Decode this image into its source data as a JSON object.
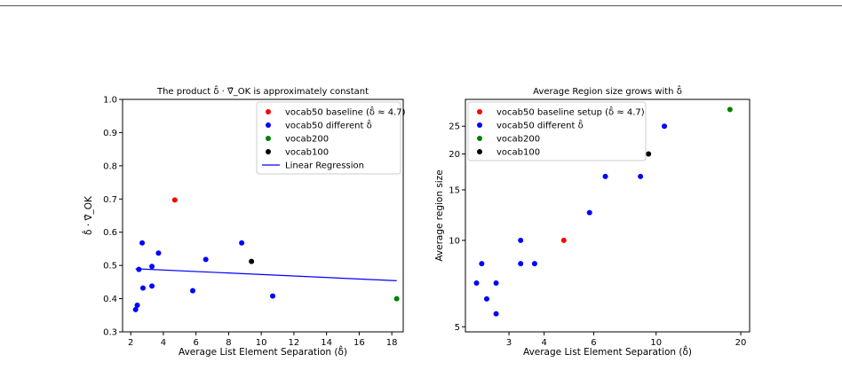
{
  "chart_data": [
    {
      "type": "scatter",
      "title": "The product δ̂ · ∇̂_OK is approximately constant",
      "xlabel": "Average List Element Separation (δ̂)",
      "ylabel": "δ̂ · ∇̂_OK",
      "xlim": [
        1.5,
        18.7
      ],
      "ylim": [
        0.3,
        1.0
      ],
      "x_ticks": [
        2,
        4,
        6,
        8,
        10,
        12,
        14,
        16,
        18
      ],
      "x_tick_labels": [
        "2",
        "4",
        "6",
        "8",
        "10",
        "12",
        "14",
        "16",
        "18"
      ],
      "y_ticks": [
        0.3,
        0.4,
        0.5,
        0.6,
        0.7,
        0.8,
        0.9,
        1.0
      ],
      "y_tick_labels": [
        "0.3",
        "0.4",
        "0.5",
        "0.6",
        "0.7",
        "0.8",
        "0.9",
        "1.0"
      ],
      "legend_position": "top-right",
      "series": [
        {
          "name": "vocab50 baseline  (δ̂ ≈ 4.7)",
          "color": "#ff0000",
          "points": [
            [
              4.7,
              0.697
            ]
          ]
        },
        {
          "name": "vocab50 different δ̂",
          "color": "#0000ff",
          "points": [
            [
              2.3,
              0.367
            ],
            [
              2.4,
              0.38
            ],
            [
              2.5,
              0.488
            ],
            [
              2.7,
              0.568
            ],
            [
              2.75,
              0.432
            ],
            [
              3.3,
              0.438
            ],
            [
              3.3,
              0.497
            ],
            [
              3.7,
              0.537
            ],
            [
              5.8,
              0.424
            ],
            [
              6.6,
              0.518
            ],
            [
              8.8,
              0.568
            ],
            [
              10.7,
              0.408
            ]
          ]
        },
        {
          "name": "vocab200",
          "color": "#008000",
          "points": [
            [
              18.3,
              0.4
            ]
          ]
        },
        {
          "name": "vocab100",
          "color": "#000000",
          "points": [
            [
              9.4,
              0.512
            ]
          ]
        },
        {
          "name": "Linear Regression",
          "color": "#0000ff",
          "kind": "line",
          "points": [
            [
              2.3,
              0.49
            ],
            [
              18.3,
              0.454
            ]
          ]
        }
      ]
    },
    {
      "type": "scatter",
      "title": "Average Region size grows with δ̂",
      "xlabel": "Average List Element Separation (δ̂)",
      "ylabel": "Average region size",
      "x_scale": "log",
      "y_scale": "log",
      "xlim": [
        2.1,
        21.5
      ],
      "ylim": [
        4.8,
        31.0
      ],
      "x_ticks": [
        3,
        4,
        6,
        10,
        20
      ],
      "x_tick_labels": [
        "3",
        "4",
        "6",
        "10",
        "20"
      ],
      "y_ticks": [
        5,
        10,
        15,
        20,
        25
      ],
      "y_tick_labels": [
        "5",
        "10",
        "15",
        "20",
        "25"
      ],
      "legend_position": "top-left",
      "series": [
        {
          "name": "vocab50 baseline setup  (δ̂ ≈ 4.7)",
          "color": "#ff0000",
          "points": [
            [
              4.7,
              10.0
            ]
          ]
        },
        {
          "name": "vocab50 different δ̂",
          "color": "#0000ff",
          "points": [
            [
              2.3,
              7.1
            ],
            [
              2.4,
              8.3
            ],
            [
              2.5,
              6.25
            ],
            [
              2.7,
              7.1
            ],
            [
              2.7,
              5.55
            ],
            [
              3.3,
              8.3
            ],
            [
              3.3,
              10.0
            ],
            [
              3.7,
              8.3
            ],
            [
              5.8,
              12.5
            ],
            [
              6.6,
              16.7
            ],
            [
              8.8,
              16.7
            ],
            [
              10.7,
              25.0
            ]
          ]
        },
        {
          "name": "vocab200",
          "color": "#008000",
          "points": [
            [
              18.3,
              28.6
            ]
          ]
        },
        {
          "name": "vocab100",
          "color": "#000000",
          "points": [
            [
              9.4,
              20.0
            ]
          ]
        }
      ]
    }
  ]
}
